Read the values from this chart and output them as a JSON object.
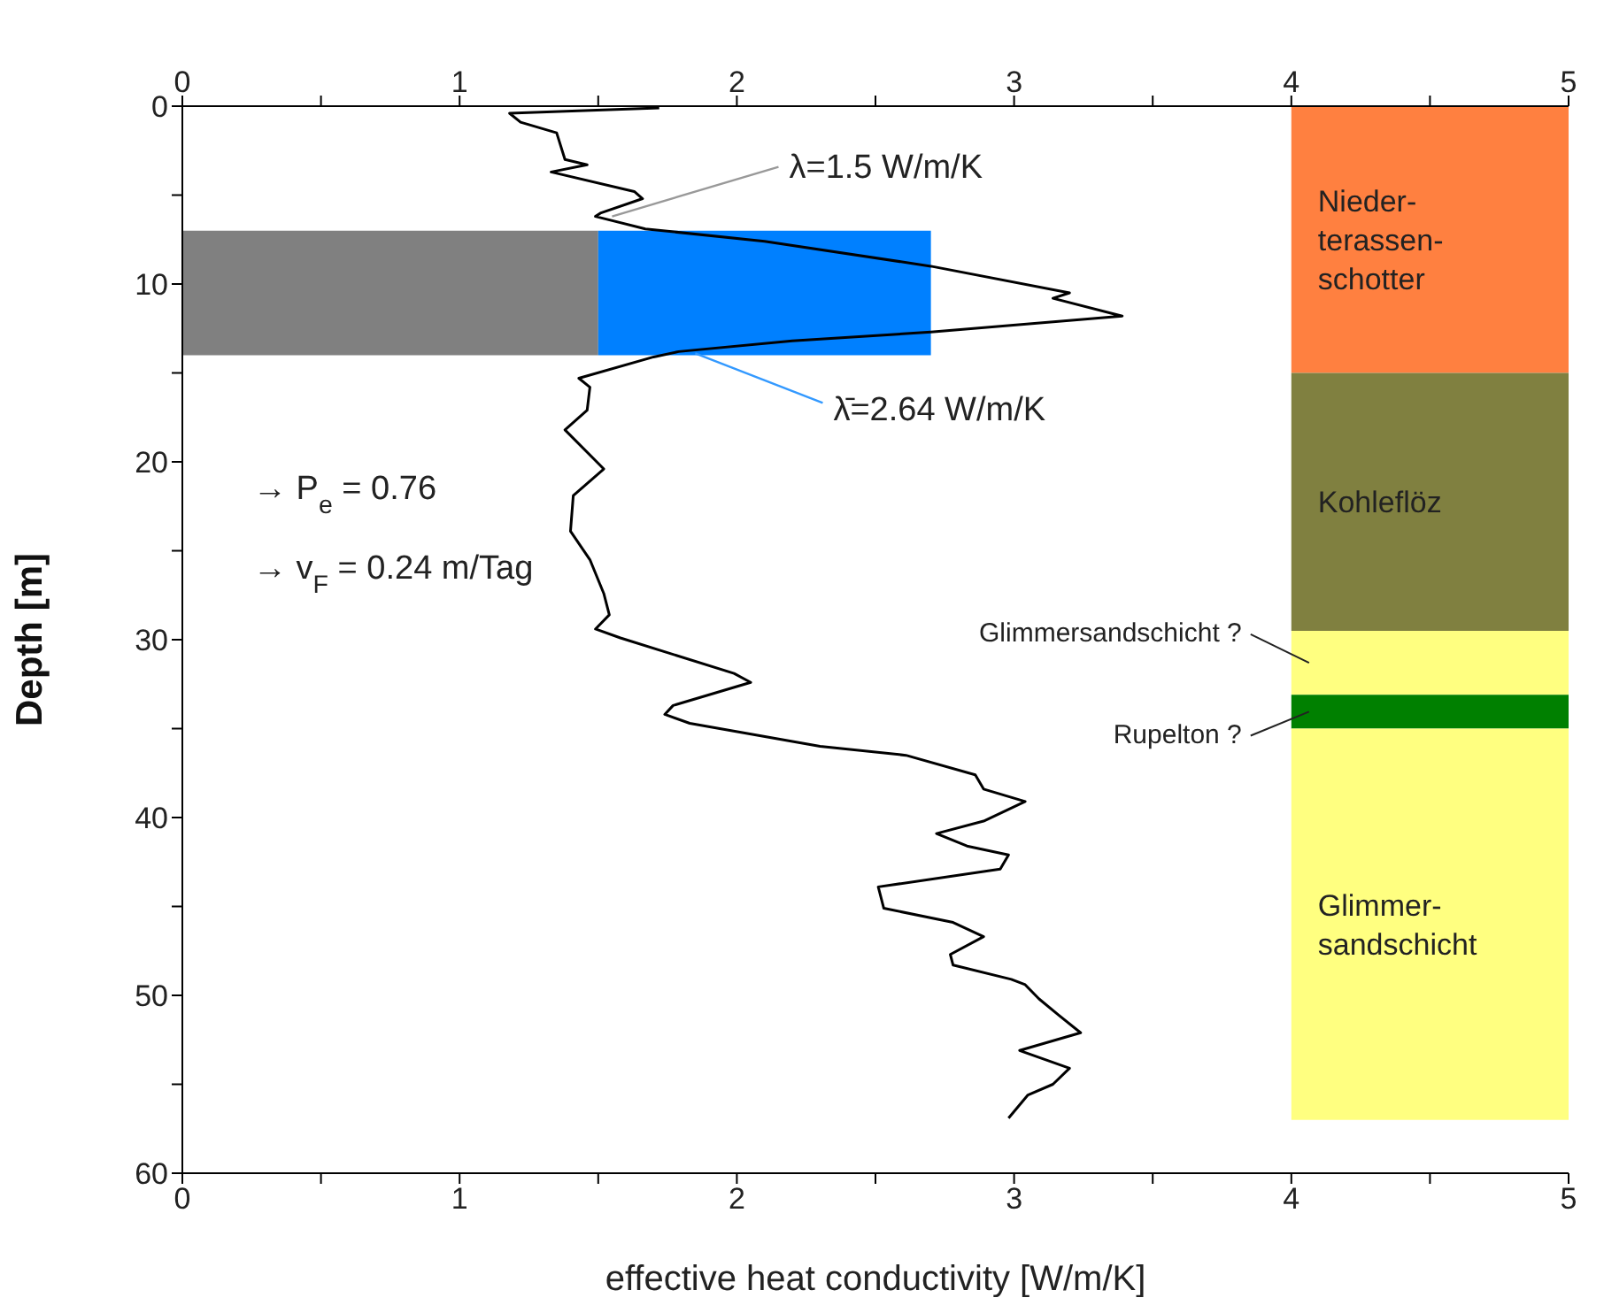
{
  "chart_data": {
    "type": "line",
    "xlabel": "effective heat conductivity [W/m/K]",
    "ylabel": "Depth [m]",
    "xlim": [
      0,
      5
    ],
    "xticks": [
      0,
      {
        "value": 0.5,
        "label": null
      },
      1,
      {
        "value": 1.5,
        "label": null
      },
      2,
      {
        "value": 2.5,
        "label": null
      },
      3,
      {
        "value": 3.5,
        "label": null
      },
      4,
      {
        "value": 4.5,
        "label": null
      },
      5
    ],
    "x2lim": [
      0,
      5
    ],
    "x2ticks": [
      0,
      {
        "value": 0.5,
        "label": null
      },
      1,
      {
        "value": 1.5,
        "label": null
      },
      2,
      {
        "value": 2.5,
        "label": null
      },
      3,
      {
        "value": 3.5,
        "label": null
      },
      4,
      {
        "value": 4.5,
        "label": null
      },
      5
    ],
    "ylim": [
      60,
      0
    ],
    "yticks": [
      0,
      {
        "value": 5,
        "label": null
      },
      10,
      {
        "value": 15,
        "label": null
      },
      20,
      {
        "value": 25,
        "label": null
      },
      30,
      {
        "value": 35,
        "label": null
      },
      40,
      {
        "value": 45,
        "label": null
      },
      50,
      {
        "value": 55,
        "label": null
      },
      60
    ],
    "grid": false,
    "marker": "none",
    "series": [
      {
        "type": "bar",
        "color": "#808080",
        "x": [
          0.75
        ],
        "base": [
          7
        ],
        "values": [
          7
        ]
      },
      {
        "type": "bar",
        "color": "#0080ff",
        "x": [
          2.1
        ],
        "base": [
          7
        ],
        "values": [
          7
        ]
      },
      {
        "type": "bar",
        "name": "Nieder-\nterassen-\nschotter",
        "color": "#ff8040",
        "x": [
          4.5
        ],
        "base": [
          0
        ],
        "values": [
          15
        ]
      },
      {
        "type": "bar",
        "name": "Kohleflöz",
        "color": "#808040",
        "x": [
          4.5
        ],
        "base": [
          15
        ],
        "values": [
          14.5
        ]
      },
      {
        "type": "bar",
        "name": "Glimmersandschicht ?",
        "color": "#ffff80",
        "x": [
          4.5
        ],
        "base": [
          29.5
        ],
        "values": [
          3.6
        ]
      },
      {
        "type": "bar",
        "name": "Rupelton ?",
        "color": "#008000",
        "x": [
          4.5
        ],
        "base": [
          33.1
        ],
        "values": [
          1.9
        ]
      },
      {
        "type": "bar",
        "name": "Glimmer-\nsandschicht",
        "color": "#ffff80",
        "x": [
          4.5
        ],
        "base": [
          35
        ],
        "values": [
          22
        ]
      },
      {
        "color": "#000000",
        "x": [
          1.72,
          1.18,
          1.22,
          1.35,
          1.38,
          1.46,
          1.33,
          1.63,
          1.66,
          1.51,
          1.49,
          1.67,
          2.1,
          2.7,
          3.2,
          3.14,
          3.39,
          2.7,
          2.2,
          1.79,
          1.7,
          1.43,
          1.47,
          1.46,
          1.38,
          1.52,
          1.41,
          1.4,
          1.47,
          1.52,
          1.54,
          1.49,
          1.58,
          1.99,
          2.05,
          1.77,
          1.74,
          1.83,
          2.3,
          2.61,
          2.86,
          2.89,
          3.04,
          2.89,
          2.72,
          2.83,
          2.98,
          2.95,
          2.51,
          2.53,
          2.78,
          2.89,
          2.77,
          2.78,
          2.99,
          3.04,
          3.09,
          3.16,
          3.24,
          3.02,
          3.2,
          3.14,
          3.05,
          2.98
        ],
        "values": [
          0.1,
          0.4,
          0.9,
          1.5,
          3.0,
          3.3,
          3.7,
          4.8,
          5.2,
          6.0,
          6.2,
          6.9,
          7.6,
          9.0,
          10.5,
          10.8,
          11.8,
          12.7,
          13.2,
          13.8,
          14.1,
          15.3,
          15.8,
          17.1,
          18.2,
          20.4,
          21.9,
          23.9,
          25.5,
          27.4,
          28.6,
          29.4,
          29.9,
          31.9,
          32.4,
          33.7,
          34.2,
          34.7,
          36.0,
          36.5,
          37.6,
          38.4,
          39.1,
          40.2,
          40.9,
          41.6,
          42.1,
          42.9,
          43.9,
          45.1,
          45.9,
          46.7,
          47.7,
          48.3,
          49.1,
          49.4,
          50.2,
          51.1,
          52.1,
          53.1,
          54.1,
          55.0,
          55.6,
          56.9
        ]
      }
    ],
    "annotations": [
      {
        "text": "λ=1.5 W/m/K",
        "x": 1.55,
        "y": 6.2
      },
      {
        "text": "λ̄=2.64 W/m/K",
        "x": 1.85,
        "y": 13.9
      },
      "→ P$_{e}$ = 0.76",
      "→ v$_{F}$ = 0.24 m/Tag"
    ]
  }
}
